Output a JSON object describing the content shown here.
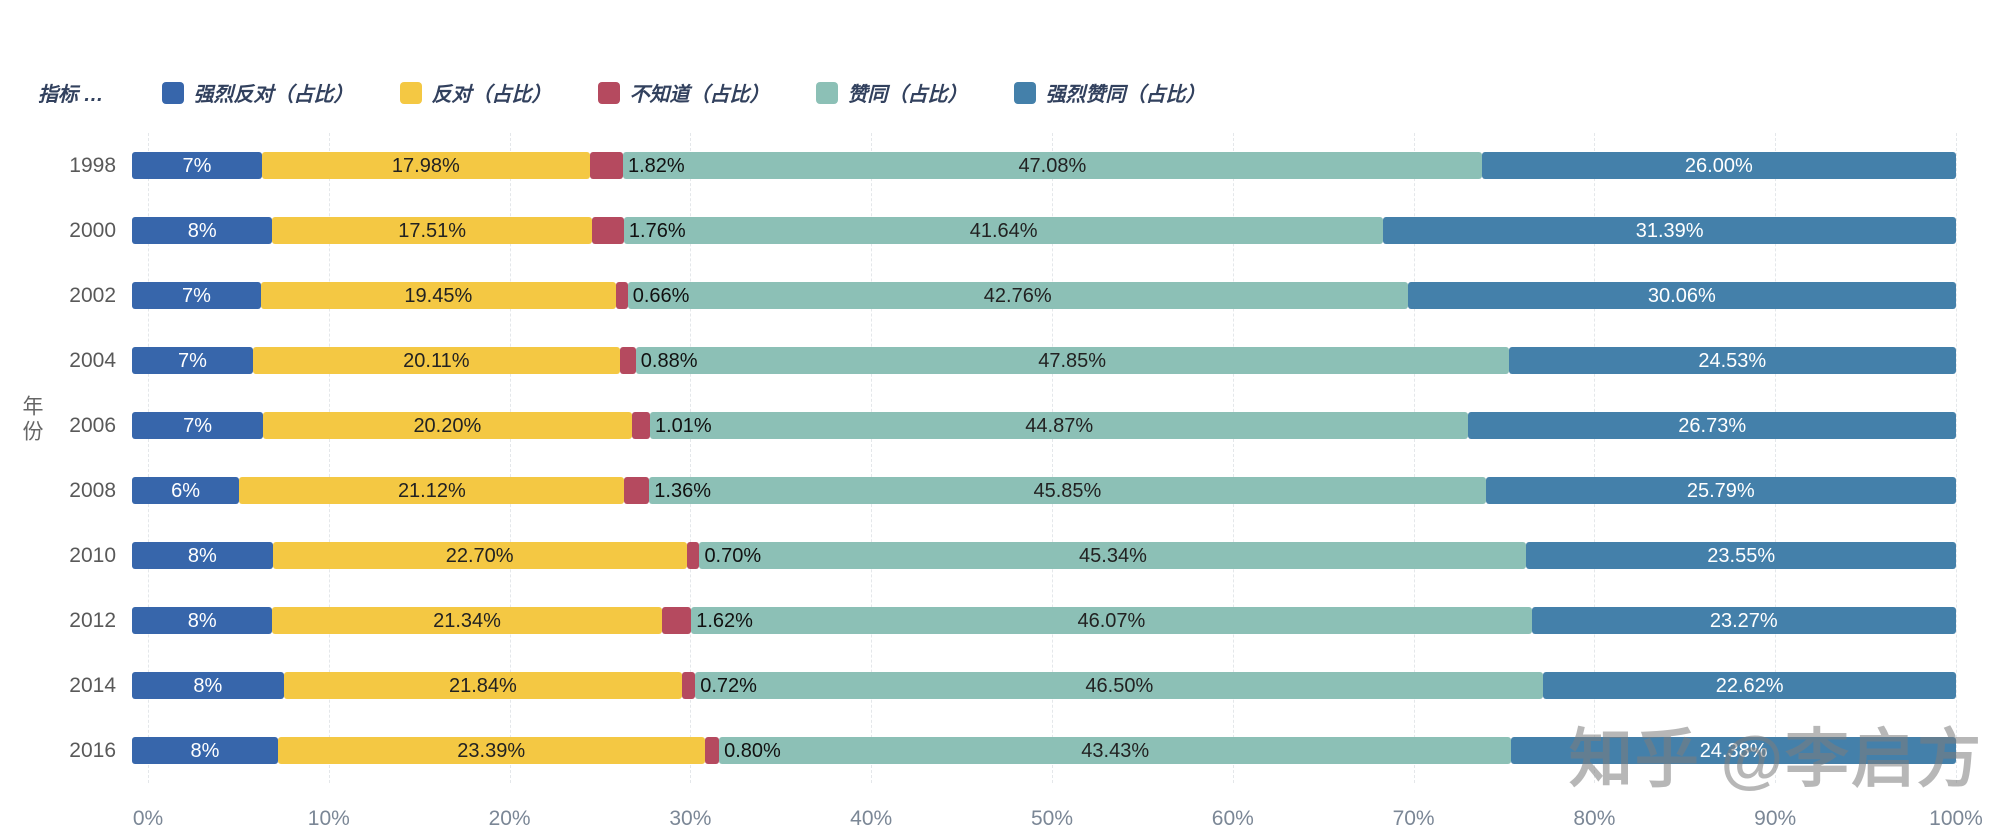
{
  "header": {
    "indicator_label": "指标 …"
  },
  "watermark": "知乎 @李启方",
  "chart_data": {
    "type": "bar",
    "orientation": "horizontal",
    "stacked": true,
    "title": "",
    "xlabel": "",
    "ylabel": "年份",
    "xlim": [
      0,
      100
    ],
    "grid": true,
    "legend_position": "top",
    "x_ticks": [
      "0%",
      "10%",
      "20%",
      "30%",
      "40%",
      "50%",
      "60%",
      "70%",
      "80%",
      "90%",
      "100%"
    ],
    "categories": [
      "1998",
      "2000",
      "2002",
      "2004",
      "2006",
      "2008",
      "2010",
      "2012",
      "2014",
      "2016"
    ],
    "series": [
      {
        "name": "强烈反对（占比）",
        "color": "#3766ab",
        "text_color": "#ffffff",
        "label_outside": false,
        "values": [
          7.12,
          7.7,
          7.07,
          6.63,
          7.19,
          5.88,
          7.71,
          7.7,
          8.32,
          8.0
        ],
        "labels": [
          "7%",
          "8%",
          "7%",
          "7%",
          "7%",
          "6%",
          "8%",
          "8%",
          "8%",
          "8%"
        ]
      },
      {
        "name": "反对（占比）",
        "color": "#f4c843",
        "text_color": "#222222",
        "label_outside": false,
        "values": [
          17.98,
          17.51,
          19.45,
          20.11,
          20.2,
          21.12,
          22.7,
          21.34,
          21.84,
          23.39
        ],
        "labels": [
          "17.98%",
          "17.51%",
          "19.45%",
          "20.11%",
          "20.20%",
          "21.12%",
          "22.70%",
          "21.34%",
          "21.84%",
          "23.39%"
        ]
      },
      {
        "name": "不知道（占比）",
        "color": "#b54a5f",
        "text_color": "#111111",
        "label_outside": true,
        "values": [
          1.82,
          1.76,
          0.66,
          0.88,
          1.01,
          1.36,
          0.7,
          1.62,
          0.72,
          0.8
        ],
        "labels": [
          "1.82%",
          "1.76%",
          "0.66%",
          "0.88%",
          "1.01%",
          "1.36%",
          "0.70%",
          "1.62%",
          "0.72%",
          "0.80%"
        ]
      },
      {
        "name": "赞同（占比）",
        "color": "#8cc0b6",
        "text_color": "#222222",
        "label_outside": false,
        "values": [
          47.08,
          41.64,
          42.76,
          47.85,
          44.87,
          45.85,
          45.34,
          46.07,
          46.5,
          43.43
        ],
        "labels": [
          "47.08%",
          "41.64%",
          "42.76%",
          "47.85%",
          "44.87%",
          "45.85%",
          "45.34%",
          "46.07%",
          "46.50%",
          "43.43%"
        ]
      },
      {
        "name": "强烈赞同（占比）",
        "color": "#4480aa",
        "text_color": "#ffffff",
        "label_outside": false,
        "values": [
          26.0,
          31.39,
          30.06,
          24.53,
          26.73,
          25.79,
          23.55,
          23.27,
          22.62,
          24.38
        ],
        "labels": [
          "26.00%",
          "31.39%",
          "30.06%",
          "24.53%",
          "26.73%",
          "25.79%",
          "23.55%",
          "23.27%",
          "22.62%",
          "24.38%"
        ]
      }
    ]
  }
}
